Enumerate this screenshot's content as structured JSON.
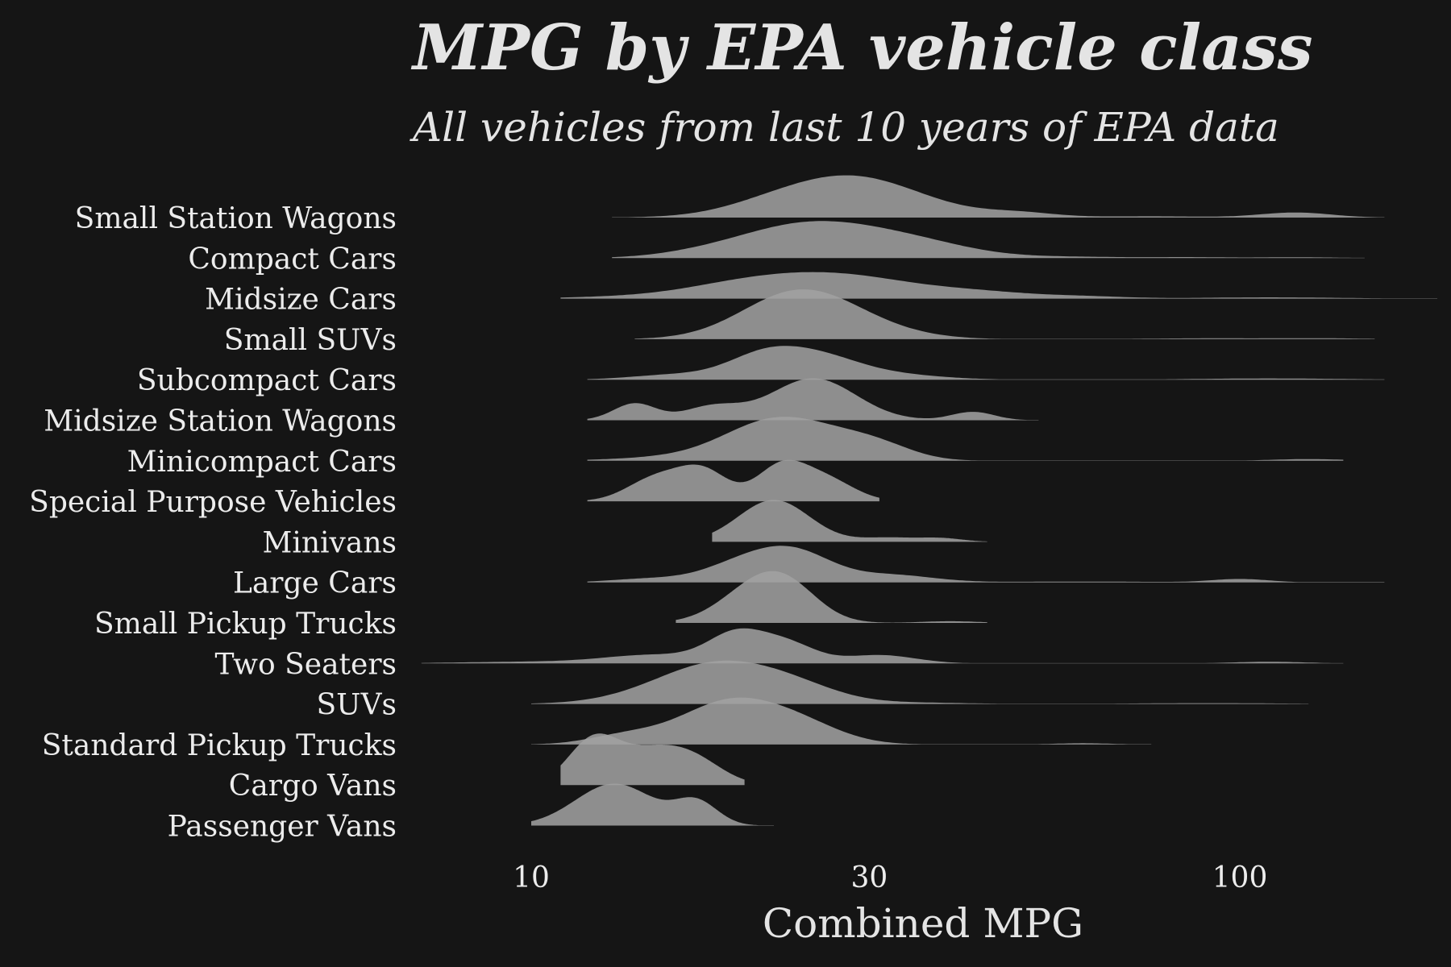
{
  "chart_data": {
    "type": "ridgeline",
    "title": "MPG by EPA vehicle class",
    "subtitle": "All vehicles from last 10 years of EPA data",
    "xlabel": "Combined MPG",
    "x_scale": "log",
    "xlim": [
      6,
      175
    ],
    "x_ticks": [
      10,
      30,
      100
    ],
    "x_tick_labels": [
      "10",
      "30",
      "100"
    ],
    "fill_color": "#a2a2a2",
    "background_color": "#151515",
    "text_color": "#e4e4e4",
    "categories": [
      "Small Station Wagons",
      "Compact Cars",
      "Midsize Cars",
      "Small SUVs",
      "Subcompact Cars",
      "Midsize Station Wagons",
      "Minicompact Cars",
      "Special Purpose Vehicles",
      "Minivans",
      "Large Cars",
      "Small Pickup Trucks",
      "Two Seaters",
      "SUVs",
      "Standard Pickup Trucks",
      "Cargo Vans",
      "Passenger Vans"
    ],
    "series": [
      {
        "name": "Small Station Wagons",
        "range": [
          13,
          160
        ],
        "peaks": [
          [
            21,
            0.07,
            0.06
          ],
          [
            28,
            1.0,
            0.1
          ],
          [
            49,
            0.1,
            0.05
          ],
          [
            75,
            0.03,
            0.08
          ],
          [
            120,
            0.12,
            0.05
          ]
        ]
      },
      {
        "name": "Compact Cars",
        "range": [
          13,
          150
        ],
        "peaks": [
          [
            17,
            0.05,
            0.06
          ],
          [
            22,
            0.2,
            0.08
          ],
          [
            27,
            0.75,
            0.11
          ],
          [
            37,
            0.1,
            0.07
          ],
          [
            58,
            0.03,
            0.08
          ],
          [
            85,
            0.02,
            0.05
          ],
          [
            120,
            0.02,
            0.06
          ]
        ]
      },
      {
        "name": "Midsize Cars",
        "range": [
          11,
          190
        ],
        "peaks": [
          [
            13,
            0.03,
            0.08
          ],
          [
            19,
            0.12,
            0.08
          ],
          [
            26,
            0.6,
            0.12
          ],
          [
            44,
            0.1,
            0.07
          ],
          [
            60,
            0.05,
            0.06
          ],
          [
            110,
            0.03,
            0.1
          ]
        ]
      },
      {
        "name": "Small SUVs",
        "range": [
          14,
          155
        ],
        "peaks": [
          [
            22,
            0.3,
            0.07
          ],
          [
            25,
            0.95,
            0.08
          ],
          [
            34,
            0.04,
            0.06
          ],
          [
            90,
            0.02,
            0.08
          ],
          [
            130,
            0.02,
            0.06
          ]
        ]
      },
      {
        "name": "Subcompact Cars",
        "range": [
          12,
          160
        ],
        "peaks": [
          [
            16,
            0.12,
            0.06
          ],
          [
            21,
            0.45,
            0.05
          ],
          [
            25,
            0.55,
            0.06
          ],
          [
            32,
            0.12,
            0.07
          ],
          [
            110,
            0.03,
            0.1
          ]
        ]
      },
      {
        "name": "Midsize Station Wagons",
        "range": [
          12,
          52
        ],
        "peaks": [
          [
            14,
            0.4,
            0.03
          ],
          [
            18,
            0.32,
            0.04
          ],
          [
            25,
            1.0,
            0.06
          ],
          [
            42,
            0.2,
            0.03
          ]
        ]
      },
      {
        "name": "Minicompact Cars",
        "range": [
          12,
          140
        ],
        "peaks": [
          [
            16,
            0.08,
            0.08
          ],
          [
            22,
            0.92,
            0.07
          ],
          [
            27,
            0.28,
            0.06
          ],
          [
            31,
            0.28,
            0.05
          ],
          [
            125,
            0.04,
            0.05
          ]
        ]
      },
      {
        "name": "Special Purpose Vehicles",
        "range": [
          12,
          31
        ],
        "peaks": [
          [
            15,
            0.55,
            0.04
          ],
          [
            17.5,
            0.7,
            0.035
          ],
          [
            22.5,
            0.8,
            0.035
          ],
          [
            26,
            0.52,
            0.04
          ]
        ]
      },
      {
        "name": "Minivans",
        "range": [
          18,
          44
        ],
        "peaks": [
          [
            22,
            1.0,
            0.05
          ],
          [
            32,
            0.1,
            0.04
          ],
          [
            38,
            0.08,
            0.03
          ]
        ]
      },
      {
        "name": "Large Cars",
        "range": [
          12,
          160
        ],
        "peaks": [
          [
            14.5,
            0.08,
            0.05
          ],
          [
            20.5,
            0.55,
            0.06
          ],
          [
            24,
            0.5,
            0.05
          ],
          [
            32,
            0.18,
            0.06
          ],
          [
            60,
            0.02,
            0.1
          ],
          [
            100,
            0.08,
            0.04
          ]
        ]
      },
      {
        "name": "Small Pickup Trucks",
        "range": [
          16,
          44
        ],
        "peaks": [
          [
            20.5,
            0.7,
            0.05
          ],
          [
            23,
            0.72,
            0.045
          ],
          [
            39,
            0.04,
            0.04
          ]
        ]
      },
      {
        "name": "Two Seaters",
        "range": [
          7,
          140
        ],
        "peaks": [
          [
            10,
            0.04,
            0.1
          ],
          [
            15,
            0.2,
            0.07
          ],
          [
            19.5,
            0.68,
            0.04
          ],
          [
            23,
            0.45,
            0.04
          ],
          [
            31,
            0.2,
            0.05
          ],
          [
            110,
            0.04,
            0.05
          ]
        ]
      },
      {
        "name": "SUVs",
        "range": [
          10,
          125
        ],
        "peaks": [
          [
            18.5,
            1.0,
            0.09
          ],
          [
            24,
            0.18,
            0.06
          ],
          [
            35,
            0.03,
            0.07
          ],
          [
            90,
            0.02,
            0.1
          ]
        ]
      },
      {
        "name": "Standard Pickup Trucks",
        "range": [
          10,
          75
        ],
        "peaks": [
          [
            13.5,
            0.2,
            0.05
          ],
          [
            19,
            1.0,
            0.07
          ],
          [
            24,
            0.4,
            0.06
          ],
          [
            60,
            0.03,
            0.04
          ]
        ]
      },
      {
        "name": "Cargo Vans",
        "range": [
          11,
          20
        ],
        "peaks": [
          [
            12.2,
            1.0,
            0.035
          ],
          [
            14.8,
            0.8,
            0.05
          ],
          [
            17.2,
            0.4,
            0.04
          ]
        ]
      },
      {
        "name": "Passenger Vans",
        "range": [
          10,
          22
        ],
        "peaks": [
          [
            13.1,
            1.0,
            0.055
          ],
          [
            17.1,
            0.55,
            0.03
          ]
        ]
      }
    ]
  }
}
